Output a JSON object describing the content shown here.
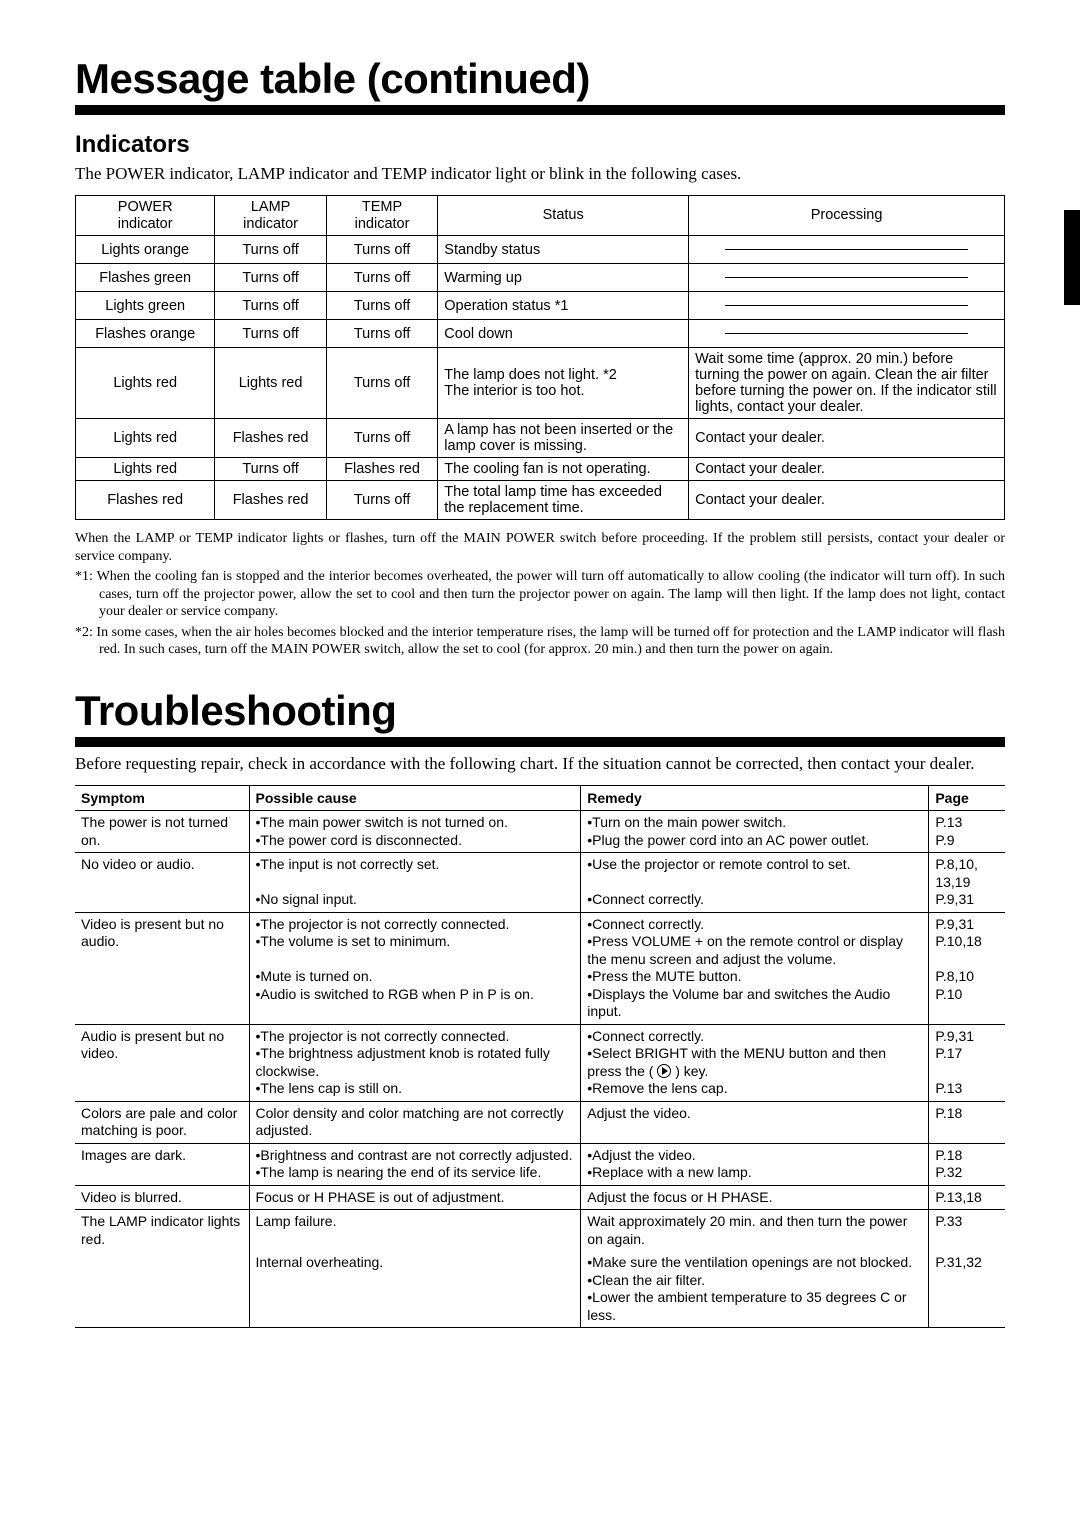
{
  "page": {
    "title1": "Message table (continued)",
    "title2": "Troubleshooting"
  },
  "indicators": {
    "heading": "Indicators",
    "intro": "The POWER indicator, LAMP indicator and TEMP indicator light or blink in the following cases.",
    "columns": [
      "POWER indicator",
      "LAMP indicator",
      "TEMP indicator",
      "Status",
      "Processing"
    ],
    "col_widths_pct": [
      15,
      12,
      12,
      27,
      34
    ],
    "rows": [
      {
        "power": "Lights orange",
        "lamp": "Turns off",
        "temp": "Turns off",
        "status": "Standby status",
        "proc_dash": true
      },
      {
        "power": "Flashes green",
        "lamp": "Turns off",
        "temp": "Turns off",
        "status": "Warming up",
        "proc_dash": true
      },
      {
        "power": "Lights green",
        "lamp": "Turns off",
        "temp": "Turns off",
        "status": "Operation status *1",
        "proc_dash": true
      },
      {
        "power": "Flashes orange",
        "lamp": "Turns off",
        "temp": "Turns off",
        "status": "Cool down",
        "proc_dash": true
      },
      {
        "power": "Lights red",
        "lamp": "Lights red",
        "temp": "Turns off",
        "status": "The lamp does not light. *2\nThe interior is too hot.",
        "proc": "Wait some time (approx. 20 min.) before turning the power on again. Clean the air filter before turning the power on. If the indicator still lights, contact your dealer."
      },
      {
        "power": "Lights red",
        "lamp": "Flashes red",
        "temp": "Turns off",
        "status": "A lamp has not been inserted or the lamp cover is missing.",
        "proc": "Contact your dealer."
      },
      {
        "power": "Lights red",
        "lamp": "Turns off",
        "temp": "Flashes red",
        "status": "The cooling fan is not operating.",
        "proc": "Contact your dealer."
      },
      {
        "power": "Flashes red",
        "lamp": "Flashes red",
        "temp": "Turns off",
        "status": "The total lamp time has exceeded the replacement time.",
        "proc": "Contact your dealer."
      }
    ],
    "notes": [
      "When the LAMP or TEMP indicator lights or flashes, turn off the MAIN POWER switch before proceeding. If the problem still persists, contact your dealer or service company.",
      "*1: When the cooling fan is stopped and the interior becomes overheated, the power will turn off automatically to allow cooling (the indicator will turn off). In such cases, turn off the projector power, allow the set to cool and then turn the projector power on again. The lamp will then light. If the lamp does not light, contact your dealer or service company.",
      "*2: In some cases, when the air holes becomes blocked and the interior temperature rises, the lamp will be turned off for protection and the LAMP indicator will flash red. In such cases, turn off the MAIN POWER switch, allow the set to cool (for approx. 20 min.) and then turn the power on again."
    ]
  },
  "troubleshooting": {
    "intro": "Before requesting repair, check in accordance with the following chart. If the situation cannot be corrected, then contact your dealer.",
    "columns": [
      "Symptom",
      "Possible cause",
      "Remedy",
      "Page"
    ],
    "rows": [
      {
        "sep": true,
        "sym": "The power is not turned on.",
        "cause": "•The main power switch is not turned on.\n•The power cord is disconnected.",
        "rem": "•Turn on the main power switch.\n•Plug the power cord into an AC power outlet.",
        "page": "P.13\nP.9"
      },
      {
        "sep": true,
        "sym": "No video or audio.",
        "cause": "•The input is not correctly set.\n\n•No signal input.",
        "rem": "•Use the projector or remote control to set.\n\n•Connect correctly.",
        "page": "P.8,10,\n13,19\nP.9,31"
      },
      {
        "sep": true,
        "sym": "Video is present but no audio.",
        "cause": "•The projector is not correctly connected.\n•The volume is set to minimum.\n\n•Mute is turned on.\n•Audio is switched to RGB when P in P is on.",
        "rem": "•Connect correctly.\n•Press VOLUME + on the remote control or display the menu screen and adjust the volume.\n•Press the MUTE button.\n•Displays the Volume bar and switches the Audio input.",
        "page": "P.9,31\nP.10,18\n\nP.8,10\nP.10"
      },
      {
        "sep": true,
        "sym": "Audio is present but no video.",
        "cause": "•The projector is not correctly connected.\n•The brightness adjustment knob is rotated fully clockwise.\n•The lens cap is still on.",
        "rem_html": "•Connect correctly.<br>•Select BRIGHT with the MENU button and then press the ( <span class='play-icon' data-name='play-icon' data-interactable='false'></span> ) key.<br>•Remove the lens cap.",
        "page": "P.9,31\nP.17\n\nP.13"
      },
      {
        "sep": true,
        "sym": "Colors are pale and color matching is poor.",
        "cause": "Color density and color matching are not correctly adjusted.",
        "rem": "Adjust the video.",
        "page": "P.18"
      },
      {
        "sep": true,
        "sym": "Images are dark.",
        "cause": "•Brightness and contrast are not correctly adjusted.\n•The lamp is nearing the end of its service life.",
        "rem": "•Adjust the video.\n•Replace with a new lamp.",
        "page": "P.18\nP.32"
      },
      {
        "sep": true,
        "sym": "Video is blurred.",
        "cause": "Focus or H PHASE is out of adjustment.",
        "rem": "Adjust the focus or H PHASE.",
        "page": "P.13,18"
      },
      {
        "sep": true,
        "sym": "The LAMP indicator lights red.",
        "cause": "Lamp failure.",
        "rem": "Wait approximately 20 min. and then turn the power on again.",
        "page": "P.33"
      },
      {
        "sep": false,
        "last": true,
        "sym": "",
        "cause": "Internal overheating.",
        "rem": "•Make sure the ventilation openings are not blocked.\n•Clean the air filter.\n•Lower the ambient temperature to 35 degrees C or less.",
        "page": "P.31,32"
      }
    ]
  }
}
